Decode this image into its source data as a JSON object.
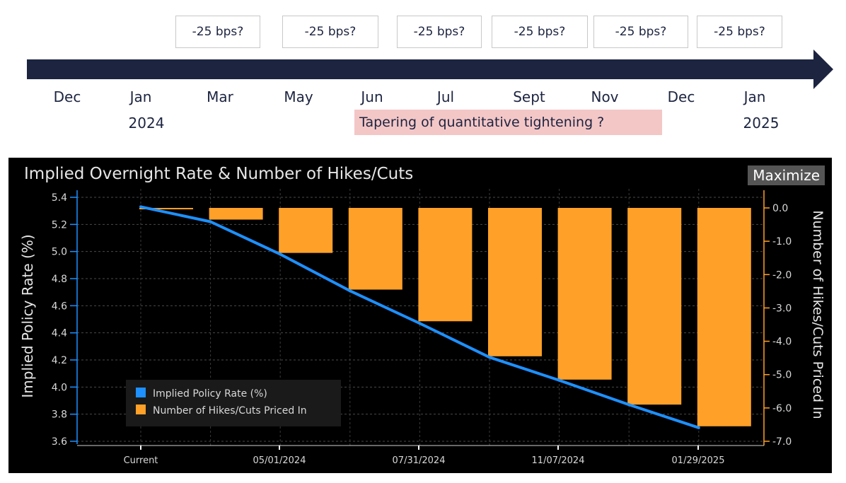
{
  "timeline": {
    "boxes": [
      "-25 bps?",
      "-25 bps?",
      "-25 bps?",
      "-25 bps?",
      "-25 bps?",
      "-25 bps?"
    ],
    "months": [
      "Dec",
      "Jan",
      "Mar",
      "May",
      "Jun",
      "Jul",
      "Sept",
      "Nov",
      "Dec",
      "Jan"
    ],
    "years": [
      "2024",
      "2025"
    ],
    "taper_label": "Tapering of quantitative tightening ?",
    "arrow_color": "#1c2440",
    "taper_color": "#f4c7c7"
  },
  "panel": {
    "maximize_label": "Maximize"
  },
  "chart_data": {
    "type": "bar",
    "title": "Implied Overnight Rate & Number of Hikes/Cuts",
    "ylabel_left": "Implied Policy Rate (%)",
    "ylabel_right": "Number of Hikes/Cuts Priced In",
    "x_tick_labels": [
      "Current",
      "05/01/2024",
      "07/31/2024",
      "11/07/2024",
      "01/29/2025"
    ],
    "left_axis": {
      "ylim": [
        3.6,
        5.4
      ],
      "ticks": [
        "5.4",
        "5.2",
        "5.0",
        "4.8",
        "4.6",
        "4.4",
        "4.2",
        "4.0",
        "3.8",
        "3.6"
      ]
    },
    "right_axis": {
      "ylim": [
        -7.0,
        0.0
      ],
      "ticks": [
        "0.0",
        "-1.0",
        "-2.0",
        "-3.0",
        "-4.0",
        "-5.0",
        "-6.0",
        "-7.0"
      ]
    },
    "grid": true,
    "legend_position": "bottom-left",
    "series": [
      {
        "name": "Implied Policy Rate (%)",
        "type": "line",
        "axis": "left",
        "color": "#1e90ff",
        "values": [
          5.33,
          5.22,
          4.98,
          4.71,
          4.47,
          4.22,
          4.05,
          3.87,
          3.7
        ]
      },
      {
        "name": "Number of Hikes/Cuts Priced In",
        "type": "bar",
        "axis": "right",
        "color": "#ffa028",
        "values": [
          0.0,
          -0.35,
          -1.35,
          -2.45,
          -3.4,
          -4.45,
          -5.15,
          -5.9,
          -6.55
        ]
      }
    ]
  }
}
